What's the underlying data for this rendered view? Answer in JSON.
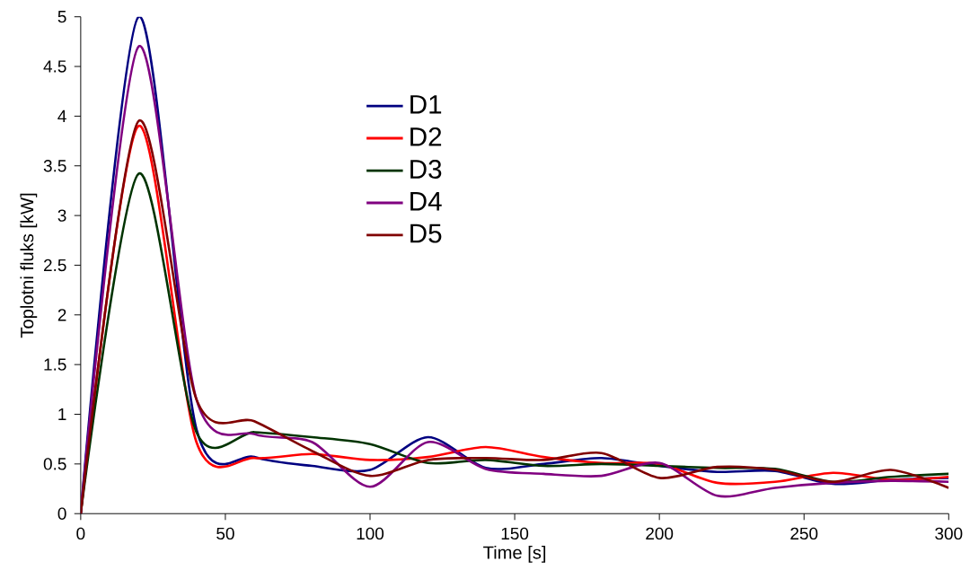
{
  "chart_data": {
    "type": "line",
    "xlabel": "Time [s]",
    "ylabel": "Toplotni fluks [kW]",
    "x": [
      0,
      20,
      40,
      60,
      80,
      100,
      120,
      140,
      160,
      180,
      200,
      220,
      240,
      260,
      280,
      300
    ],
    "series": [
      {
        "name": "D1",
        "color": "#000080",
        "values": [
          0,
          5.0,
          0.85,
          0.57,
          0.48,
          0.44,
          0.77,
          0.46,
          0.5,
          0.56,
          0.48,
          0.42,
          0.43,
          0.3,
          0.34,
          0.36
        ]
      },
      {
        "name": "D2",
        "color": "#ff0000",
        "values": [
          0,
          3.9,
          0.72,
          0.56,
          0.6,
          0.54,
          0.57,
          0.67,
          0.57,
          0.51,
          0.5,
          0.31,
          0.32,
          0.41,
          0.34,
          0.37
        ]
      },
      {
        "name": "D3",
        "color": "#003300",
        "values": [
          0,
          3.42,
          0.82,
          0.82,
          0.77,
          0.7,
          0.51,
          0.54,
          0.48,
          0.5,
          0.48,
          0.46,
          0.45,
          0.32,
          0.37,
          0.4
        ]
      },
      {
        "name": "D4",
        "color": "#800080",
        "values": [
          0,
          4.7,
          1.15,
          0.8,
          0.72,
          0.27,
          0.72,
          0.45,
          0.4,
          0.38,
          0.51,
          0.18,
          0.26,
          0.31,
          0.33,
          0.32
        ]
      },
      {
        "name": "D5",
        "color": "#800000",
        "values": [
          0,
          3.95,
          1.15,
          0.93,
          0.63,
          0.38,
          0.54,
          0.56,
          0.54,
          0.61,
          0.36,
          0.47,
          0.44,
          0.32,
          0.44,
          0.26
        ]
      }
    ],
    "xlim": [
      0,
      300
    ],
    "ylim": [
      0,
      5
    ],
    "xticks": [
      0,
      50,
      100,
      150,
      200,
      250,
      300
    ],
    "yticks": [
      0,
      0.5,
      1,
      1.5,
      2,
      2.5,
      3,
      3.5,
      4,
      4.5,
      5
    ],
    "grid": false,
    "legend": "top",
    "marker": "none",
    "line_style": "solid"
  }
}
